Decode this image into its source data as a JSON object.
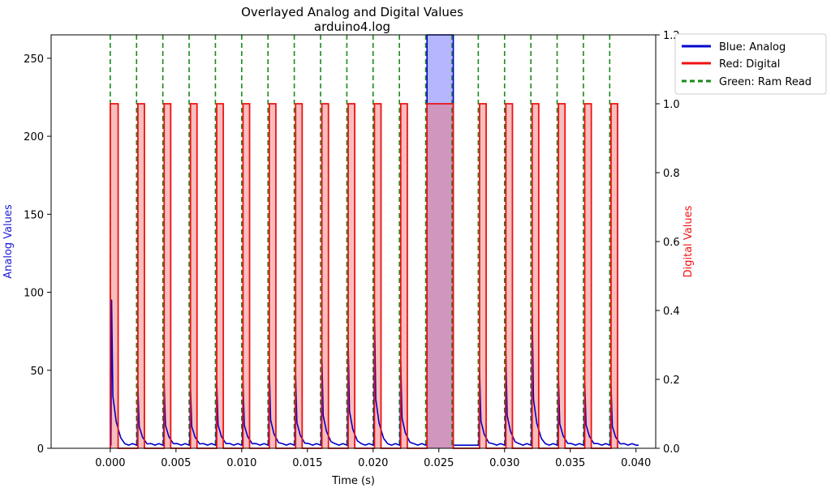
{
  "chart_data": {
    "type": "line",
    "title": "Overlayed Analog and Digital Values",
    "subtitle": "arduino4.log",
    "xlabel": "Time (s)",
    "ylabel_left": "Analog Values",
    "ylabel_right": "Digital Values",
    "xlim": [
      -0.0045,
      0.0415
    ],
    "ylim_left": [
      0,
      265
    ],
    "ylim_right": [
      0,
      1.2
    ],
    "xticks": [
      "0.000",
      "0.005",
      "0.010",
      "0.015",
      "0.020",
      "0.025",
      "0.030",
      "0.035",
      "0.040"
    ],
    "xtick_values": [
      0,
      0.005,
      0.01,
      0.015,
      0.02,
      0.025,
      0.03,
      0.035,
      0.04
    ],
    "yticks_left": [
      "0",
      "50",
      "100",
      "150",
      "200",
      "250"
    ],
    "ytick_values_left": [
      0,
      50,
      100,
      150,
      200,
      250
    ],
    "yticks_right": [
      "0.0",
      "0.2",
      "0.4",
      "0.6",
      "0.8",
      "1.0",
      "1.2"
    ],
    "ytick_values_right": [
      0,
      0.2,
      0.4,
      0.6,
      0.8,
      1.0,
      1.2
    ],
    "grid": false,
    "legend": {
      "placement": "outside-top-right",
      "entries": [
        "Blue: Analog",
        "Red: Digital",
        "Green: Ram Read"
      ]
    },
    "colors": {
      "analog": "#0000cc",
      "digital": "#ee1111",
      "ram_read": "#1a8a1a"
    },
    "digital_pulses": [
      {
        "start": 0.0,
        "end": 0.0006
      },
      {
        "start": 0.0021,
        "end": 0.0026
      },
      {
        "start": 0.0041,
        "end": 0.0046
      },
      {
        "start": 0.0061,
        "end": 0.0066
      },
      {
        "start": 0.0081,
        "end": 0.0086
      },
      {
        "start": 0.0101,
        "end": 0.0106
      },
      {
        "start": 0.0121,
        "end": 0.0126
      },
      {
        "start": 0.0141,
        "end": 0.0146
      },
      {
        "start": 0.0161,
        "end": 0.0166
      },
      {
        "start": 0.0181,
        "end": 0.0186
      },
      {
        "start": 0.0201,
        "end": 0.0206
      },
      {
        "start": 0.0221,
        "end": 0.0226
      },
      {
        "start": 0.0241,
        "end": 0.0261
      },
      {
        "start": 0.0281,
        "end": 0.0286
      },
      {
        "start": 0.0301,
        "end": 0.0306
      },
      {
        "start": 0.0321,
        "end": 0.0326
      },
      {
        "start": 0.0341,
        "end": 0.0346
      },
      {
        "start": 0.0361,
        "end": 0.0366
      },
      {
        "start": 0.0381,
        "end": 0.0386
      }
    ],
    "ram_reads": [
      0.0,
      0.002,
      0.004,
      0.006,
      0.008,
      0.01,
      0.012,
      0.014,
      0.016,
      0.018,
      0.02,
      0.022,
      0.024,
      0.026,
      0.028,
      0.03,
      0.032,
      0.034,
      0.036,
      0.038
    ],
    "analog_peaks": [
      {
        "t": 0.0001,
        "v": 95
      },
      {
        "t": 0.0021,
        "v": 40
      },
      {
        "t": 0.0041,
        "v": 42
      },
      {
        "t": 0.0061,
        "v": 40
      },
      {
        "t": 0.0081,
        "v": 43
      },
      {
        "t": 0.0101,
        "v": 42
      },
      {
        "t": 0.0121,
        "v": 52
      },
      {
        "t": 0.0141,
        "v": 47
      },
      {
        "t": 0.0161,
        "v": 60
      },
      {
        "t": 0.0181,
        "v": 68
      },
      {
        "t": 0.0201,
        "v": 90
      },
      {
        "t": 0.0221,
        "v": 55
      },
      {
        "t": 0.0281,
        "v": 50
      },
      {
        "t": 0.0301,
        "v": 60
      },
      {
        "t": 0.0321,
        "v": 90
      },
      {
        "t": 0.0341,
        "v": 45
      },
      {
        "t": 0.0361,
        "v": 43
      },
      {
        "t": 0.0381,
        "v": 40
      }
    ],
    "analog_saturated": {
      "start": 0.0241,
      "end": 0.0261,
      "v": 265
    },
    "analog_baseline": 2,
    "analog_end": 0.0402
  }
}
